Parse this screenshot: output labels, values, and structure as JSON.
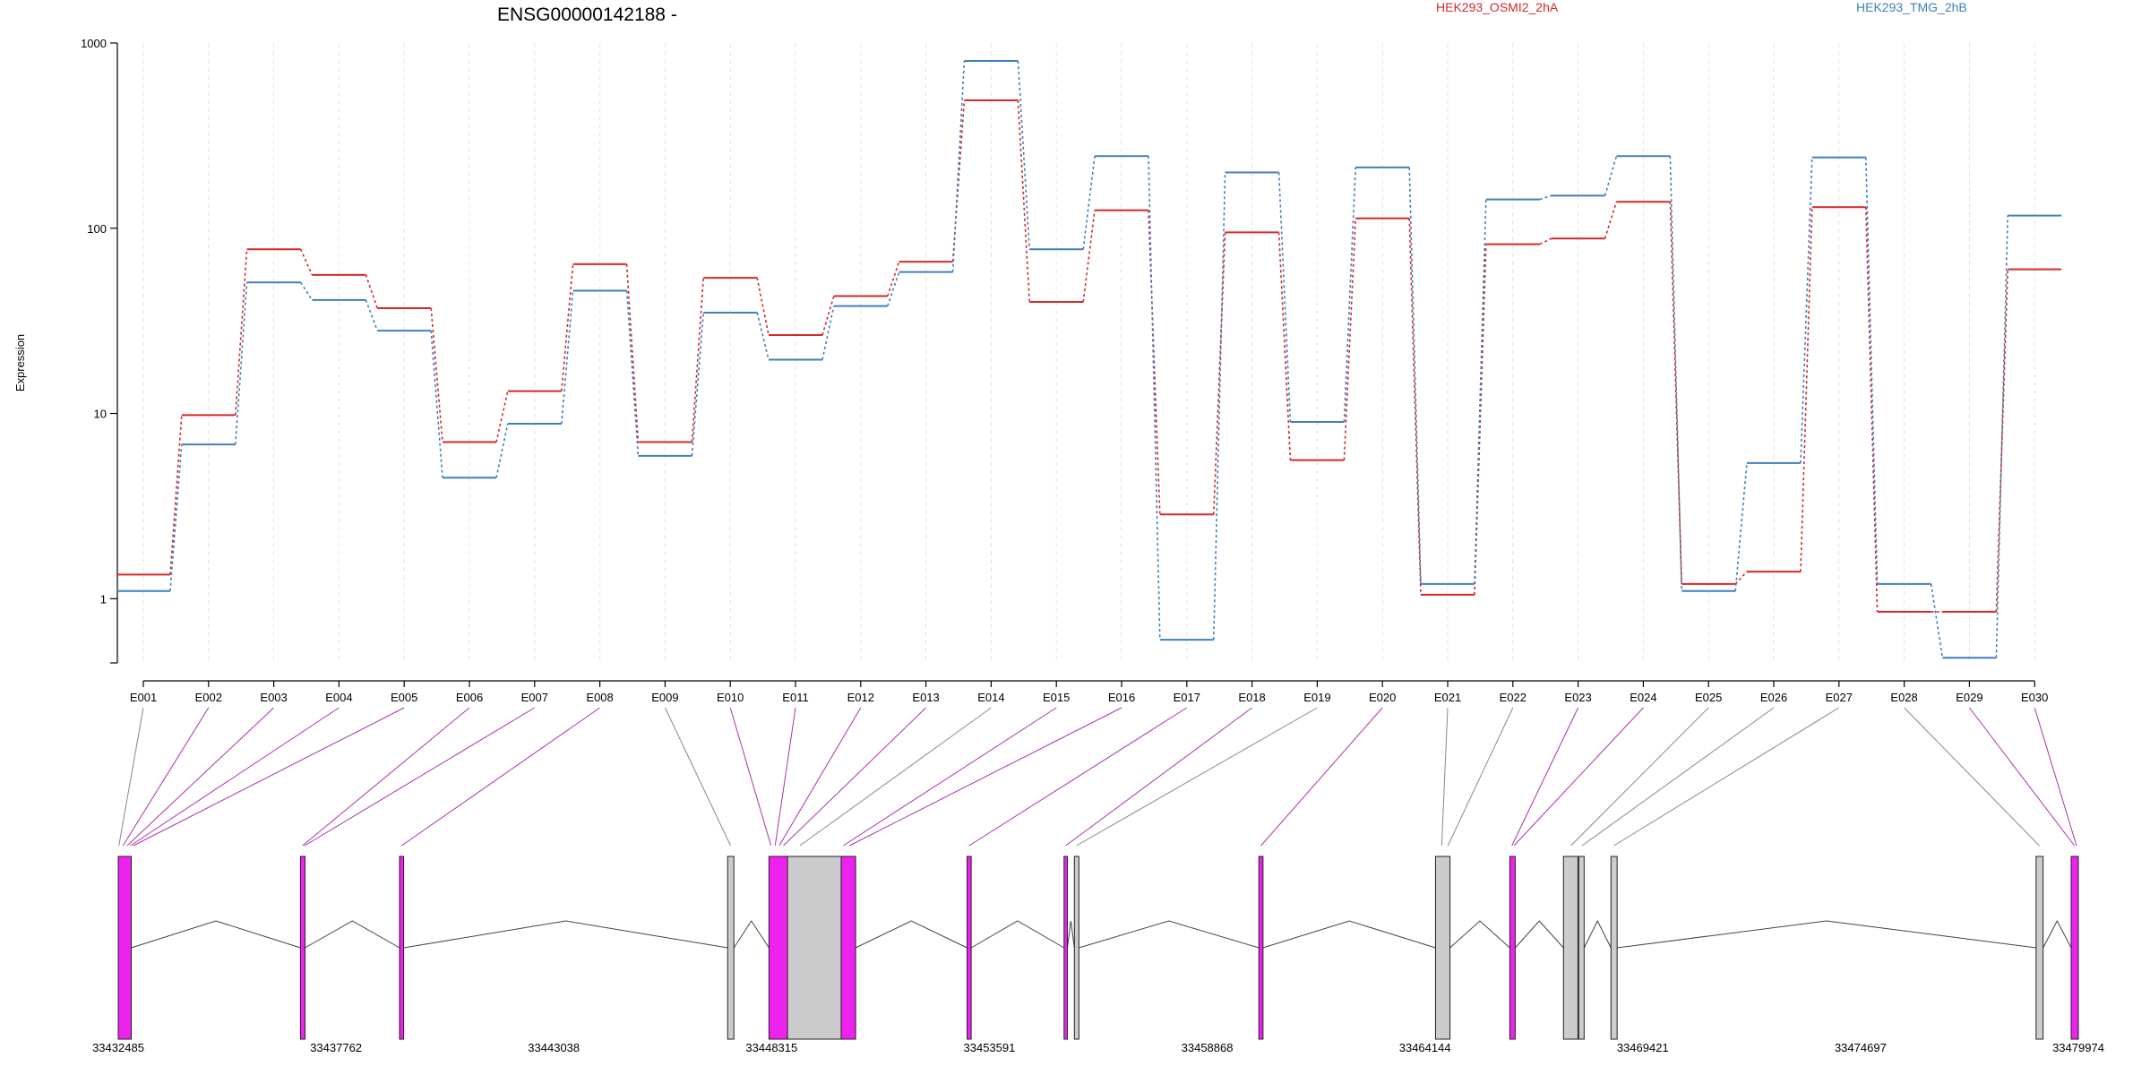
{
  "chart_data": {
    "type": "line",
    "title": "ENSG00000142188 -",
    "ylabel": "Expression",
    "yscale": "log",
    "ylim": [
      0.45,
      1000
    ],
    "yticks": [
      {
        "value": 1,
        "label": "1"
      },
      {
        "value": 10,
        "label": "10"
      },
      {
        "value": 100,
        "label": "100"
      },
      {
        "value": 1000,
        "label": "1000"
      }
    ],
    "categories": [
      "E001",
      "E002",
      "E003",
      "E004",
      "E005",
      "E006",
      "E007",
      "E008",
      "E009",
      "E010",
      "E011",
      "E012",
      "E013",
      "E014",
      "E015",
      "E016",
      "E017",
      "E018",
      "E019",
      "E020",
      "E021",
      "E022",
      "E023",
      "E024",
      "E025",
      "E026",
      "E027",
      "E028",
      "E029",
      "E030"
    ],
    "series": [
      {
        "name": "HEK293_OSMI2_2hA",
        "color": "#d62728",
        "values": [
          1.35,
          9.8,
          77,
          56,
          37,
          7.0,
          13.2,
          64,
          7.0,
          54,
          26.5,
          43,
          66,
          490,
          40,
          125,
          2.85,
          95,
          5.6,
          113,
          1.05,
          82,
          88,
          139,
          1.2,
          1.4,
          130,
          0.85,
          0.85,
          60
        ]
      },
      {
        "name": "HEK293_TMG_2hB",
        "color": "#3f7fbf",
        "values": [
          1.1,
          6.8,
          51,
          41,
          28,
          4.5,
          8.8,
          46,
          5.9,
          35,
          19.5,
          38,
          58,
          800,
          77,
          245,
          0.6,
          200,
          9.0,
          213,
          1.2,
          143,
          150,
          245,
          1.1,
          5.4,
          241,
          1.2,
          0.48,
          117
        ]
      }
    ],
    "gene_model": {
      "coord_labels": [
        "33432485",
        "33437762",
        "33443038",
        "33448315",
        "33453591",
        "33458868",
        "33464144",
        "33469421",
        "33474697",
        "33479974"
      ],
      "coord_range": [
        33432485,
        33479974
      ],
      "exons": [
        {
          "start": 33432485,
          "end": 33432800,
          "color": "#ee22ee"
        },
        {
          "start": 33436900,
          "end": 33437010,
          "color": "#ee22ee"
        },
        {
          "start": 33439300,
          "end": 33439400,
          "color": "#ee22ee"
        },
        {
          "start": 33447250,
          "end": 33447400,
          "color": "#cccccc"
        },
        {
          "start": 33448250,
          "end": 33448700,
          "color": "#ee22ee"
        },
        {
          "start": 33448700,
          "end": 33450000,
          "color": "#cccccc"
        },
        {
          "start": 33450000,
          "end": 33450350,
          "color": "#ee22ee"
        },
        {
          "start": 33453050,
          "end": 33453150,
          "color": "#ee22ee"
        },
        {
          "start": 33455400,
          "end": 33455480,
          "color": "#ee22ee"
        },
        {
          "start": 33455650,
          "end": 33455760,
          "color": "#cccccc"
        },
        {
          "start": 33460120,
          "end": 33460220,
          "color": "#ee22ee"
        },
        {
          "start": 33464400,
          "end": 33464750,
          "color": "#cccccc"
        },
        {
          "start": 33466200,
          "end": 33466330,
          "color": "#ee22ee"
        },
        {
          "start": 33467500,
          "end": 33467850,
          "color": "#cccccc"
        },
        {
          "start": 33467870,
          "end": 33468000,
          "color": "#cccccc"
        },
        {
          "start": 33468650,
          "end": 33468800,
          "color": "#cccccc"
        },
        {
          "start": 33478950,
          "end": 33479120,
          "color": "#cccccc"
        },
        {
          "start": 33479800,
          "end": 33479974,
          "color": "#ee22ee"
        }
      ],
      "connectors": [
        {
          "to": 33432500,
          "color": "#888888"
        },
        {
          "to": 33432600,
          "color": "#aa33aa"
        },
        {
          "to": 33432700,
          "color": "#aa33aa"
        },
        {
          "to": 33432780,
          "color": "#aa33aa"
        },
        {
          "to": 33432850,
          "color": "#aa33aa"
        },
        {
          "to": 33436950,
          "color": "#aa33aa"
        },
        {
          "to": 33437000,
          "color": "#aa33aa"
        },
        {
          "to": 33439350,
          "color": "#aa33aa"
        },
        {
          "to": 33447320,
          "color": "#888888"
        },
        {
          "to": 33448300,
          "color": "#aa33aa"
        },
        {
          "to": 33448400,
          "color": "#aa33aa"
        },
        {
          "to": 33448500,
          "color": "#aa33aa"
        },
        {
          "to": 33448600,
          "color": "#aa33aa"
        },
        {
          "to": 33449000,
          "color": "#888888"
        },
        {
          "to": 33450050,
          "color": "#aa33aa"
        },
        {
          "to": 33450200,
          "color": "#aa33aa"
        },
        {
          "to": 33453100,
          "color": "#aa33aa"
        },
        {
          "to": 33455440,
          "color": "#aa33aa"
        },
        {
          "to": 33455700,
          "color": "#888888"
        },
        {
          "to": 33460170,
          "color": "#aa33aa"
        },
        {
          "to": 33464550,
          "color": "#888888"
        },
        {
          "to": 33464700,
          "color": "#888888"
        },
        {
          "to": 33466250,
          "color": "#aa33aa"
        },
        {
          "to": 33466300,
          "color": "#aa33aa"
        },
        {
          "to": 33467680,
          "color": "#888888"
        },
        {
          "to": 33467950,
          "color": "#888888"
        },
        {
          "to": 33468720,
          "color": "#888888"
        },
        {
          "to": 33479030,
          "color": "#888888"
        },
        {
          "to": 33479880,
          "color": "#aa33aa"
        },
        {
          "to": 33479930,
          "color": "#aa33aa"
        }
      ]
    }
  }
}
